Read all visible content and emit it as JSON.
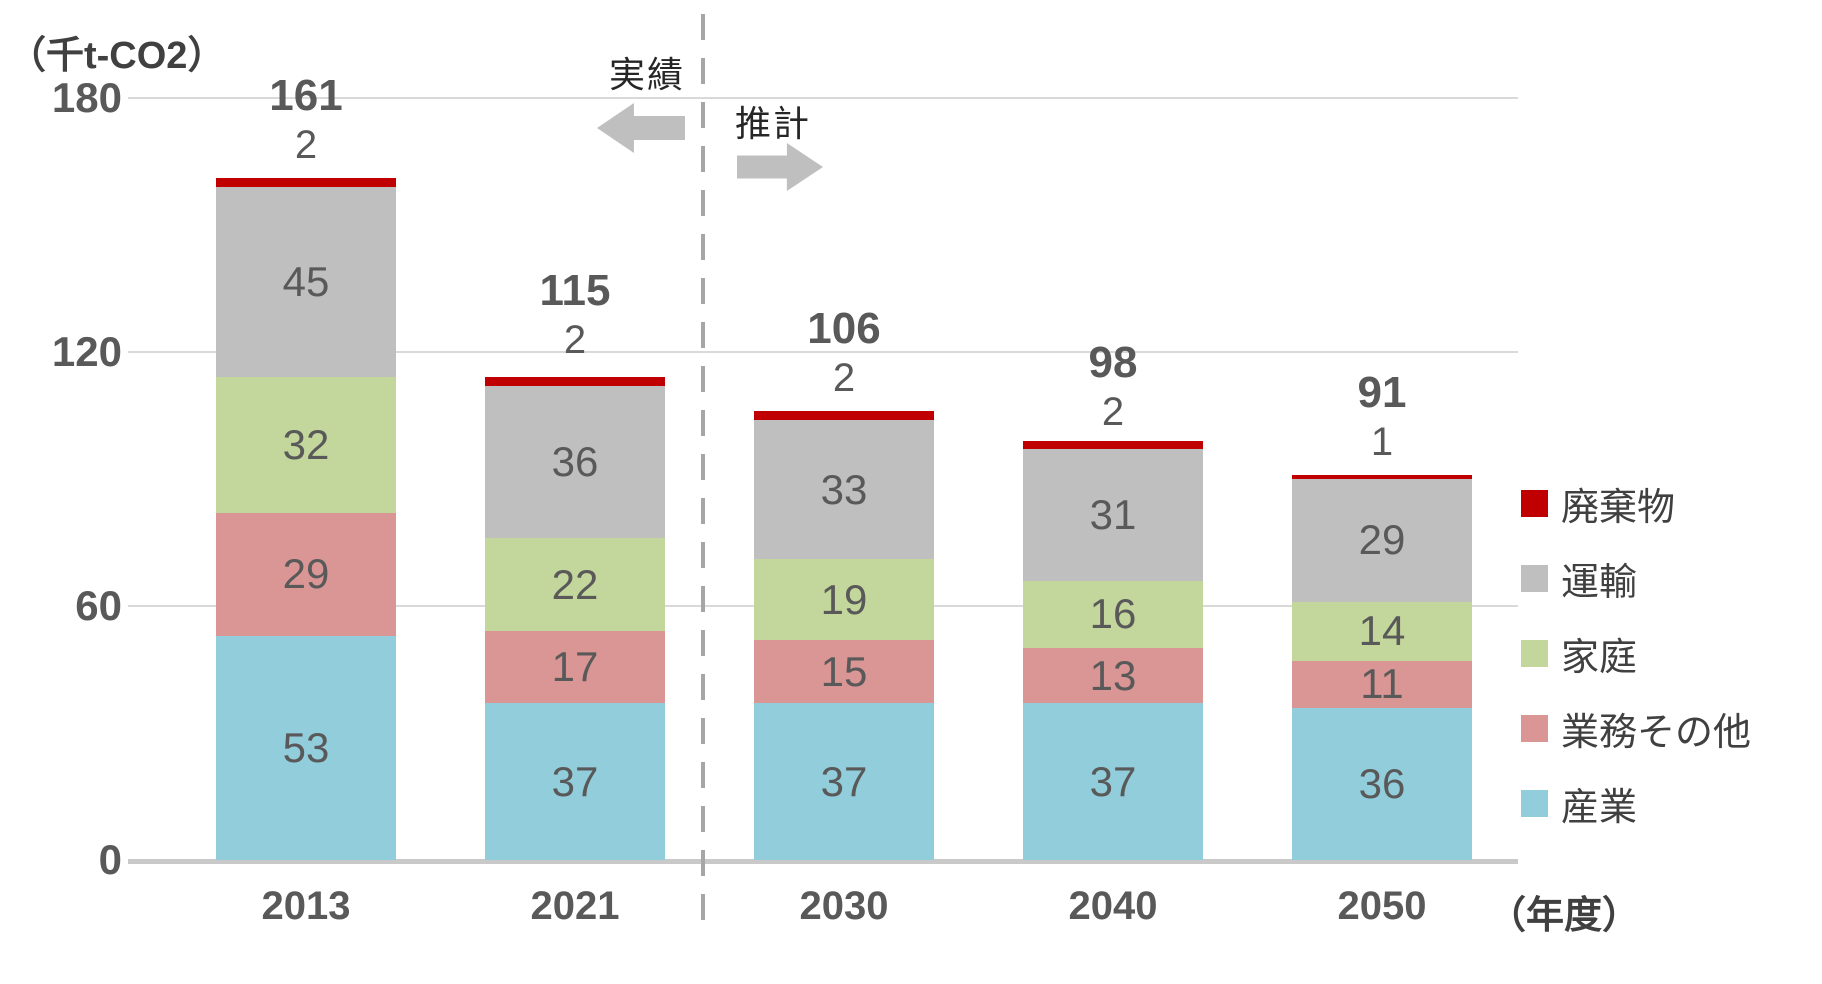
{
  "chart": {
    "y_unit_label": "（千t-CO2）",
    "x_unit_label": "（年度）"
  },
  "annotations": {
    "actual_label": "実績",
    "estimate_label": "推計"
  },
  "chart_data": {
    "type": "bar",
    "stacked": true,
    "title": "",
    "ylabel": "（千t-CO2）",
    "xlabel": "（年度）",
    "ylim": [
      0,
      180
    ],
    "yticks": [
      0,
      60,
      120,
      180
    ],
    "grid": true,
    "legend_position": "right",
    "categories": [
      "2013",
      "2021",
      "2030",
      "2040",
      "2050"
    ],
    "series": [
      {
        "key": "industry",
        "name": "産業",
        "color": "#92CDDC",
        "values": [
          53,
          37,
          37,
          37,
          36
        ]
      },
      {
        "key": "business-other",
        "name": "業務その他",
        "color": "#D99694",
        "values": [
          29,
          17,
          15,
          13,
          11
        ]
      },
      {
        "key": "household",
        "name": "家庭",
        "color": "#C3D69B",
        "values": [
          32,
          22,
          19,
          16,
          14
        ]
      },
      {
        "key": "transport",
        "name": "運輸",
        "color": "#BFBFBF",
        "values": [
          45,
          36,
          33,
          31,
          29
        ]
      },
      {
        "key": "waste",
        "name": "廃棄物",
        "color": "#C00000",
        "values": [
          2,
          2,
          2,
          2,
          1
        ]
      }
    ],
    "totals": [
      161,
      115,
      106,
      98,
      91
    ],
    "divider": {
      "between": [
        "2021",
        "2030"
      ],
      "style": "dashed",
      "actual_side": "left",
      "estimate_side": "right"
    },
    "colors": {
      "gridline": "#D9D9D9",
      "baseline": "#C9C9C9",
      "label_text": "#595959",
      "axis_text": "#404040",
      "annotation_arrow": "#BFBFBF",
      "divider_line": "#A6A6A6"
    }
  }
}
